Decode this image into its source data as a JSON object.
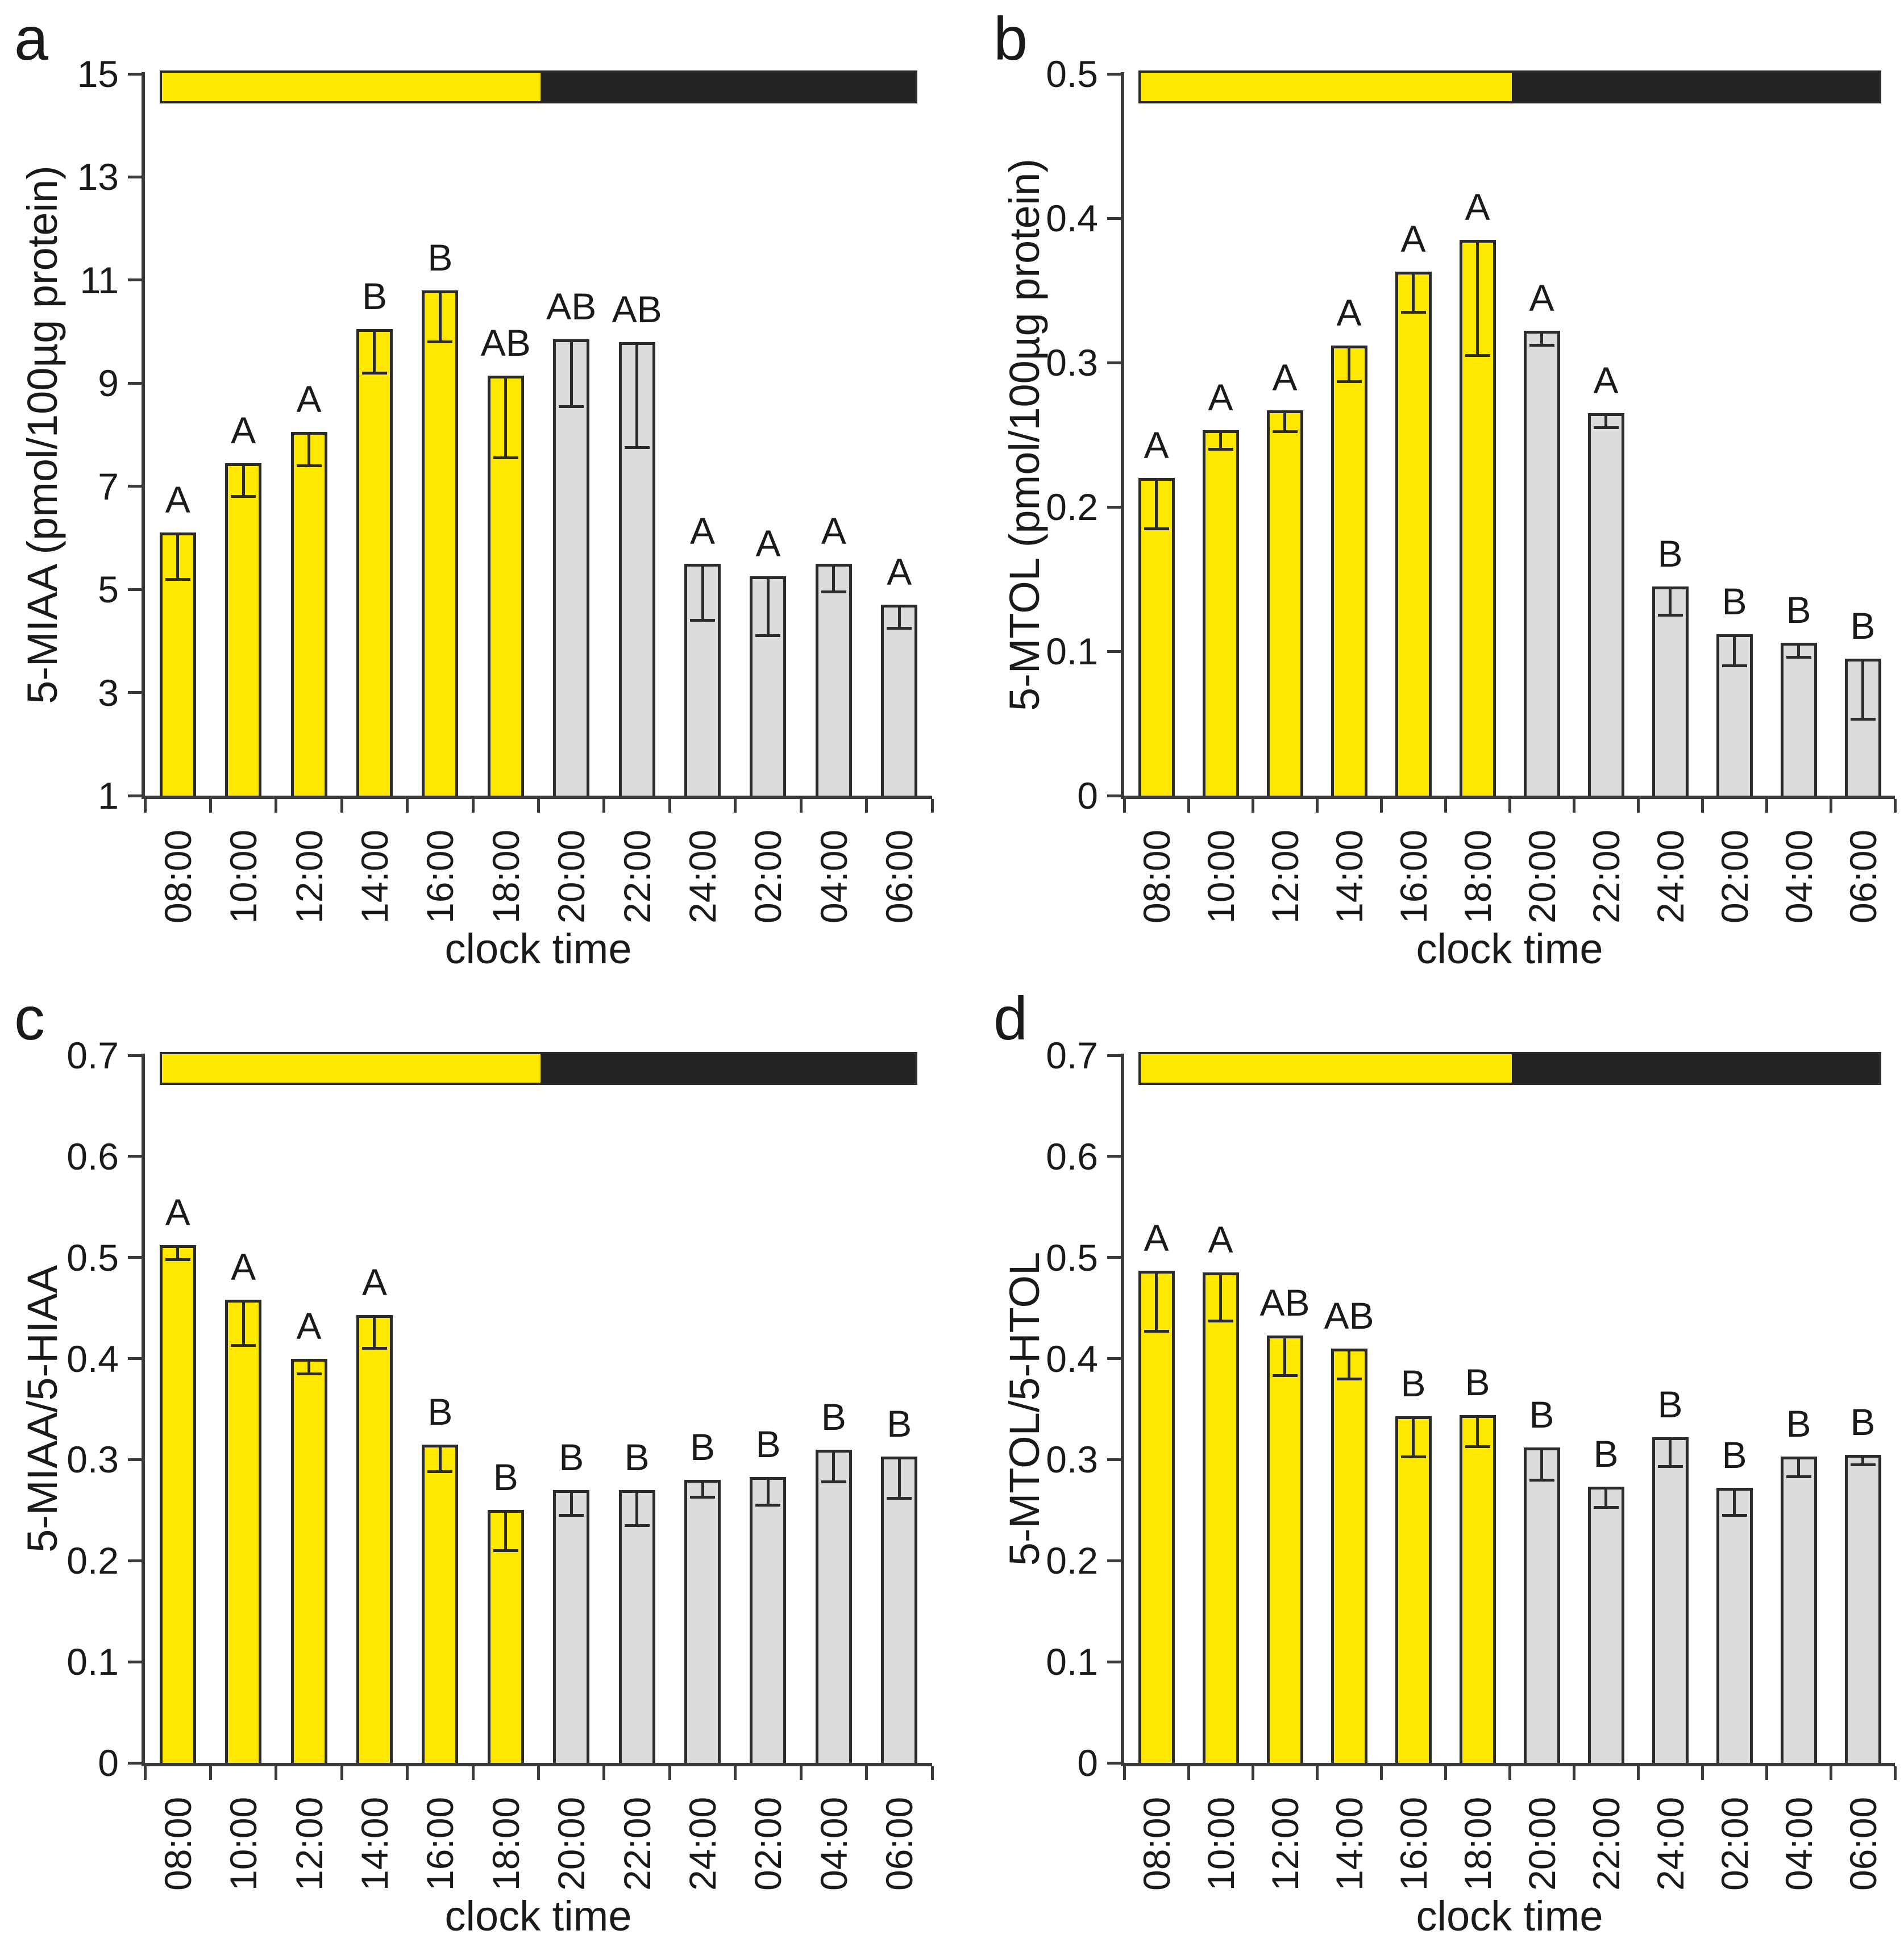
{
  "figure_title": "",
  "colors": {
    "light_phase": "#ffe800",
    "dark_phase": "#222222",
    "day_bar_fill": "#ffe800",
    "night_bar_fill": "#dcdcdc",
    "outline": "#2b2b2b",
    "axis": "#3a3a3a",
    "text": "#1a1a1a",
    "background": "#ffffff"
  },
  "chart_data": [
    {
      "panel": "a",
      "letter": "a",
      "type": "bar",
      "ylabel": "5-MIAA (pmol/100µg protein)",
      "xlabel": "clock time",
      "ymin": 1,
      "ymax": 15,
      "yticks": [
        "1",
        "3",
        "5",
        "7",
        "9",
        "11",
        "13",
        "15"
      ],
      "categories": [
        "08:00",
        "10:00",
        "12:00",
        "14:00",
        "16:00",
        "18:00",
        "20:00",
        "22:00",
        "24:00",
        "02:00",
        "04:00",
        "06:00"
      ],
      "values": [
        6.1,
        7.45,
        8.05,
        10.05,
        10.8,
        9.15,
        9.85,
        9.8,
        5.5,
        5.25,
        5.5,
        4.7
      ],
      "errors": [
        0.9,
        0.65,
        0.65,
        0.85,
        1.0,
        1.6,
        1.3,
        2.05,
        1.1,
        1.15,
        0.55,
        0.45
      ],
      "error_direction": "down",
      "sig_letters": [
        "A",
        "A",
        "A",
        "B",
        "B",
        "AB",
        "AB",
        "AB",
        "A",
        "A",
        "A",
        "A"
      ],
      "n_light_bars": 6,
      "legend_position": "none",
      "grid": false
    },
    {
      "panel": "b",
      "letter": "b",
      "type": "bar",
      "ylabel": "5-MTOL (pmol/100µg protein)",
      "xlabel": "clock time",
      "ymin": 0,
      "ymax": 0.5,
      "yticks": [
        "0",
        "0.1",
        "0.2",
        "0.3",
        "0.4",
        "0.5"
      ],
      "categories": [
        "08:00",
        "10:00",
        "12:00",
        "14:00",
        "16:00",
        "18:00",
        "20:00",
        "22:00",
        "24:00",
        "02:00",
        "04:00",
        "06:00"
      ],
      "values": [
        0.22,
        0.253,
        0.267,
        0.312,
        0.363,
        0.385,
        0.322,
        0.265,
        0.145,
        0.112,
        0.106,
        0.095
      ],
      "errors": [
        0.035,
        0.013,
        0.015,
        0.025,
        0.028,
        0.08,
        0.01,
        0.01,
        0.02,
        0.022,
        0.01,
        0.042
      ],
      "error_direction": "down",
      "sig_letters": [
        "A",
        "A",
        "A",
        "A",
        "A",
        "A",
        "A",
        "A",
        "B",
        "B",
        "B",
        "B"
      ],
      "n_light_bars": 6,
      "legend_position": "none",
      "grid": false
    },
    {
      "panel": "c",
      "letter": "c",
      "type": "bar",
      "ylabel": "5-MIAA/5-HIAA",
      "xlabel": "clock time",
      "ymin": 0,
      "ymax": 0.7,
      "yticks": [
        "0",
        "0.1",
        "0.2",
        "0.3",
        "0.4",
        "0.5",
        "0.6",
        "0.7"
      ],
      "categories": [
        "08:00",
        "10:00",
        "12:00",
        "14:00",
        "16:00",
        "18:00",
        "20:00",
        "22:00",
        "24:00",
        "02:00",
        "04:00",
        "06:00"
      ],
      "values": [
        0.512,
        0.458,
        0.4,
        0.443,
        0.315,
        0.25,
        0.27,
        0.27,
        0.28,
        0.283,
        0.31,
        0.303
      ],
      "errors": [
        0.014,
        0.045,
        0.015,
        0.033,
        0.027,
        0.04,
        0.025,
        0.035,
        0.017,
        0.028,
        0.032,
        0.041
      ],
      "error_direction": "down",
      "sig_letters": [
        "A",
        "A",
        "A",
        "A",
        "B",
        "B",
        "B",
        "B",
        "B",
        "B",
        "B",
        "B"
      ],
      "n_light_bars": 6,
      "legend_position": "none",
      "grid": false
    },
    {
      "panel": "d",
      "letter": "d",
      "type": "bar",
      "ylabel": "5-MTOL/5-HTOL",
      "xlabel": "clock time",
      "ymin": 0,
      "ymax": 0.7,
      "yticks": [
        "0",
        "0.1",
        "0.2",
        "0.3",
        "0.4",
        "0.5",
        "0.6",
        "0.7"
      ],
      "categories": [
        "08:00",
        "10:00",
        "12:00",
        "14:00",
        "16:00",
        "18:00",
        "20:00",
        "22:00",
        "24:00",
        "02:00",
        "04:00",
        "06:00"
      ],
      "values": [
        0.487,
        0.485,
        0.423,
        0.41,
        0.343,
        0.344,
        0.312,
        0.273,
        0.322,
        0.272,
        0.303,
        0.305
      ],
      "errors": [
        0.06,
        0.048,
        0.04,
        0.03,
        0.04,
        0.031,
        0.032,
        0.02,
        0.029,
        0.027,
        0.02,
        0.01
      ],
      "error_direction": "down",
      "sig_letters": [
        "A",
        "A",
        "AB",
        "AB",
        "B",
        "B",
        "B",
        "B",
        "B",
        "B",
        "B",
        "B"
      ],
      "n_light_bars": 6,
      "legend_position": "none",
      "grid": false
    }
  ]
}
